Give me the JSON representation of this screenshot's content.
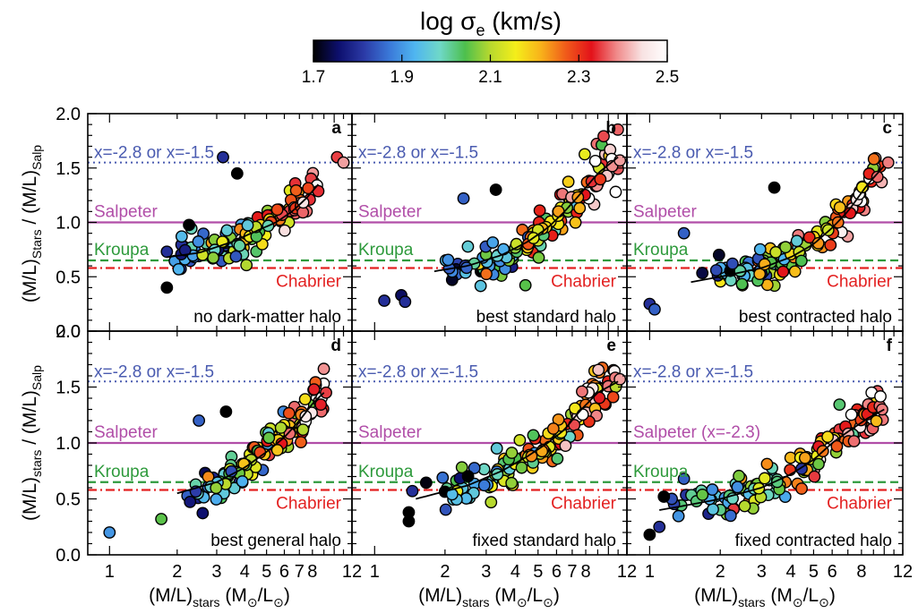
{
  "colorbar": {
    "title": "log σ",
    "title_sub": "e",
    "title_unit": " (km/s)",
    "ticks": [
      1.7,
      1.9,
      2.1,
      2.3,
      2.5
    ],
    "range": [
      1.7,
      2.5
    ],
    "colors": [
      "#000000",
      "#0d0f6e",
      "#2b3aa6",
      "#3a78d8",
      "#4fb5f0",
      "#6fd8c8",
      "#4dbf4d",
      "#b8d92e",
      "#f4ee1a",
      "#f8b21a",
      "#f05a1a",
      "#e3121a",
      "#f08a8a",
      "#f8e2e2",
      "#ffffff"
    ]
  },
  "shared_axes": {
    "ylabel_top": {
      "main": "(M/L)",
      "sub1": "Stars",
      "mid": " / (M/L)",
      "sub2": "Salp"
    },
    "ylabel_bottom": {
      "main": "(M/L)",
      "sub1": "stars",
      "mid": " / (M/L)",
      "sub2": "Salp"
    },
    "xlabel": {
      "main": "(M/L)",
      "sub1": "stars",
      "mid": " (M",
      "sub2": "⊙",
      "slash": "/L",
      "sub3": "⊙",
      "end": ")"
    },
    "yticks": [
      "0.0",
      "0.5",
      "1.0",
      "1.5",
      "2.0"
    ],
    "xticks_panel1": [
      "1",
      "2",
      "3",
      "4",
      "5",
      "6",
      "7",
      "8",
      "12"
    ],
    "xticks_panel2": [
      "1",
      "2",
      "3",
      "4",
      "5",
      "6",
      "7",
      "8",
      "12"
    ],
    "xticks_panel3": [
      "1",
      "2",
      "3",
      "4",
      "5",
      "6",
      "8",
      "12"
    ]
  },
  "reference_lines": {
    "x_label": "x=-2.8 or x=-1.5",
    "salpeter": "Salpeter",
    "salpeter_f": "Salpeter (x=-2.3)",
    "kroupa": "Kroupa",
    "chabrier": "Chabrier",
    "colors": {
      "x": "#4a5bb0",
      "salpeter": "#b14ea8",
      "kroupa": "#2e9a3c",
      "chabrier": "#e32020"
    }
  },
  "chart_data": [
    {
      "type": "scatter",
      "panel": "a",
      "label": "no dark-matter halo",
      "xscale": "log",
      "xlim": [
        0.8,
        12
      ],
      "ylim": [
        0,
        2.0
      ],
      "hlines": {
        "x": 1.55,
        "salpeter": 1.0,
        "kroupa": 0.65,
        "chabrier": 0.58
      },
      "trend": [
        [
          1.8,
          0.68
        ],
        [
          2.5,
          0.72
        ],
        [
          3.5,
          0.82
        ],
        [
          4.5,
          0.92
        ],
        [
          5.5,
          1.0
        ],
        [
          6.5,
          1.1
        ],
        [
          7.5,
          1.22
        ],
        [
          8.5,
          1.35
        ]
      ],
      "outliers": [
        {
          "x": 3.2,
          "y": 1.6,
          "s": 1.8
        },
        {
          "x": 3.7,
          "y": 1.45,
          "s": 1.7
        },
        {
          "x": 1.8,
          "y": 0.4,
          "s": 1.7
        },
        {
          "x": 1.8,
          "y": 0.73,
          "s": 1.8
        },
        {
          "x": 10.3,
          "y": 1.6,
          "s": 2.35
        },
        {
          "x": 11,
          "y": 1.55,
          "s": 2.4
        }
      ],
      "n": 130,
      "seed": 11
    },
    {
      "type": "scatter",
      "panel": "b",
      "label": "best standard halo",
      "xscale": "log",
      "xlim": [
        0.8,
        12
      ],
      "ylim": [
        0,
        2.0
      ],
      "hlines": {
        "x": 1.55,
        "salpeter": 1.0,
        "kroupa": 0.65,
        "chabrier": 0.58
      },
      "trend": [
        [
          1.8,
          0.55
        ],
        [
          2.5,
          0.6
        ],
        [
          3.5,
          0.7
        ],
        [
          4.5,
          0.82
        ],
        [
          5.5,
          0.95
        ],
        [
          6.5,
          1.1
        ],
        [
          7.5,
          1.25
        ],
        [
          9,
          1.45
        ],
        [
          11,
          1.6
        ]
      ],
      "outliers": [
        {
          "x": 1.1,
          "y": 0.28,
          "s": 1.8
        },
        {
          "x": 1.3,
          "y": 0.33,
          "s": 1.75
        },
        {
          "x": 1.35,
          "y": 0.27,
          "s": 1.8
        },
        {
          "x": 2.4,
          "y": 1.22,
          "s": 1.85
        },
        {
          "x": 3.3,
          "y": 1.3,
          "s": 1.7
        },
        {
          "x": 11.2,
          "y": 1.57,
          "s": 2.4
        }
      ],
      "n": 140,
      "seed": 23
    },
    {
      "type": "scatter",
      "panel": "c",
      "label": "best contracted halo",
      "xscale": "log",
      "xlim": [
        0.8,
        12
      ],
      "ylim": [
        0,
        2.0
      ],
      "hlines": {
        "x": 1.55,
        "salpeter": 1.0,
        "kroupa": 0.65,
        "chabrier": 0.58
      },
      "trend": [
        [
          1.5,
          0.45
        ],
        [
          2,
          0.5
        ],
        [
          3,
          0.58
        ],
        [
          4,
          0.68
        ],
        [
          5,
          0.8
        ],
        [
          6,
          0.95
        ],
        [
          7,
          1.1
        ],
        [
          8.5,
          1.35
        ],
        [
          10,
          1.52
        ]
      ],
      "outliers": [
        {
          "x": 1.0,
          "y": 0.25,
          "s": 1.8
        },
        {
          "x": 1.05,
          "y": 0.2,
          "s": 1.85
        },
        {
          "x": 1.4,
          "y": 0.9,
          "s": 1.85
        },
        {
          "x": 3.4,
          "y": 1.32,
          "s": 1.7
        },
        {
          "x": 10.4,
          "y": 1.55,
          "s": 2.38
        }
      ],
      "n": 140,
      "seed": 37
    },
    {
      "type": "scatter",
      "panel": "d",
      "label": "best general halo",
      "xscale": "log",
      "xlim": [
        0.8,
        12
      ],
      "ylim": [
        0,
        2.0
      ],
      "hlines": {
        "x": 1.55,
        "salpeter": 1.0,
        "kroupa": 0.65,
        "chabrier": 0.58
      },
      "trend": [
        [
          2,
          0.55
        ],
        [
          3,
          0.65
        ],
        [
          4,
          0.78
        ],
        [
          5,
          0.92
        ],
        [
          6,
          1.05
        ],
        [
          7,
          1.2
        ],
        [
          8,
          1.35
        ],
        [
          9,
          1.45
        ]
      ],
      "outliers": [
        {
          "x": 1.0,
          "y": 0.2,
          "s": 1.9
        },
        {
          "x": 2.5,
          "y": 1.2,
          "s": 1.85
        },
        {
          "x": 3.3,
          "y": 1.28,
          "s": 1.7
        },
        {
          "x": 1.7,
          "y": 0.32,
          "s": 2.05
        },
        {
          "x": 9.2,
          "y": 1.45,
          "s": 2.35
        }
      ],
      "n": 130,
      "seed": 53
    },
    {
      "type": "scatter",
      "panel": "e",
      "label": "fixed standard halo",
      "xscale": "log",
      "xlim": [
        0.8,
        12
      ],
      "ylim": [
        0,
        2.0
      ],
      "hlines": {
        "x": 1.55,
        "salpeter": 1.0,
        "kroupa": 0.65,
        "chabrier": 0.58
      },
      "trend": [
        [
          1.5,
          0.5
        ],
        [
          2.5,
          0.62
        ],
        [
          3.5,
          0.75
        ],
        [
          4.5,
          0.88
        ],
        [
          5.5,
          1.0
        ],
        [
          6.5,
          1.12
        ],
        [
          7.5,
          1.28
        ],
        [
          9,
          1.45
        ],
        [
          11,
          1.55
        ]
      ],
      "outliers": [
        {
          "x": 1.4,
          "y": 0.38,
          "s": 1.7
        },
        {
          "x": 1.4,
          "y": 0.3,
          "s": 1.7
        },
        {
          "x": 1.45,
          "y": 0.57,
          "s": 1.8
        },
        {
          "x": 11.2,
          "y": 1.57,
          "s": 2.4
        }
      ],
      "n": 140,
      "seed": 71
    },
    {
      "type": "scatter",
      "panel": "f",
      "label": "fixed contracted halo",
      "xscale": "log",
      "xlim": [
        0.8,
        12
      ],
      "ylim": [
        0,
        2.0
      ],
      "hlines": {
        "x": 1.55,
        "salpeter": 1.0,
        "kroupa": 0.65,
        "chabrier": 0.58
      },
      "trend": [
        [
          1.1,
          0.4
        ],
        [
          1.5,
          0.45
        ],
        [
          2,
          0.5
        ],
        [
          3,
          0.6
        ],
        [
          4,
          0.72
        ],
        [
          5,
          0.85
        ],
        [
          6,
          1.0
        ],
        [
          7,
          1.1
        ],
        [
          8.5,
          1.22
        ],
        [
          10,
          1.3
        ]
      ],
      "outliers": [
        {
          "x": 1.0,
          "y": 0.18,
          "s": 1.7
        },
        {
          "x": 1.1,
          "y": 0.25,
          "s": 1.8
        },
        {
          "x": 1.15,
          "y": 0.52,
          "s": 1.7
        },
        {
          "x": 1.4,
          "y": 0.68,
          "s": 1.85
        },
        {
          "x": 9.8,
          "y": 1.3,
          "s": 2.38
        }
      ],
      "n": 140,
      "seed": 89
    }
  ]
}
